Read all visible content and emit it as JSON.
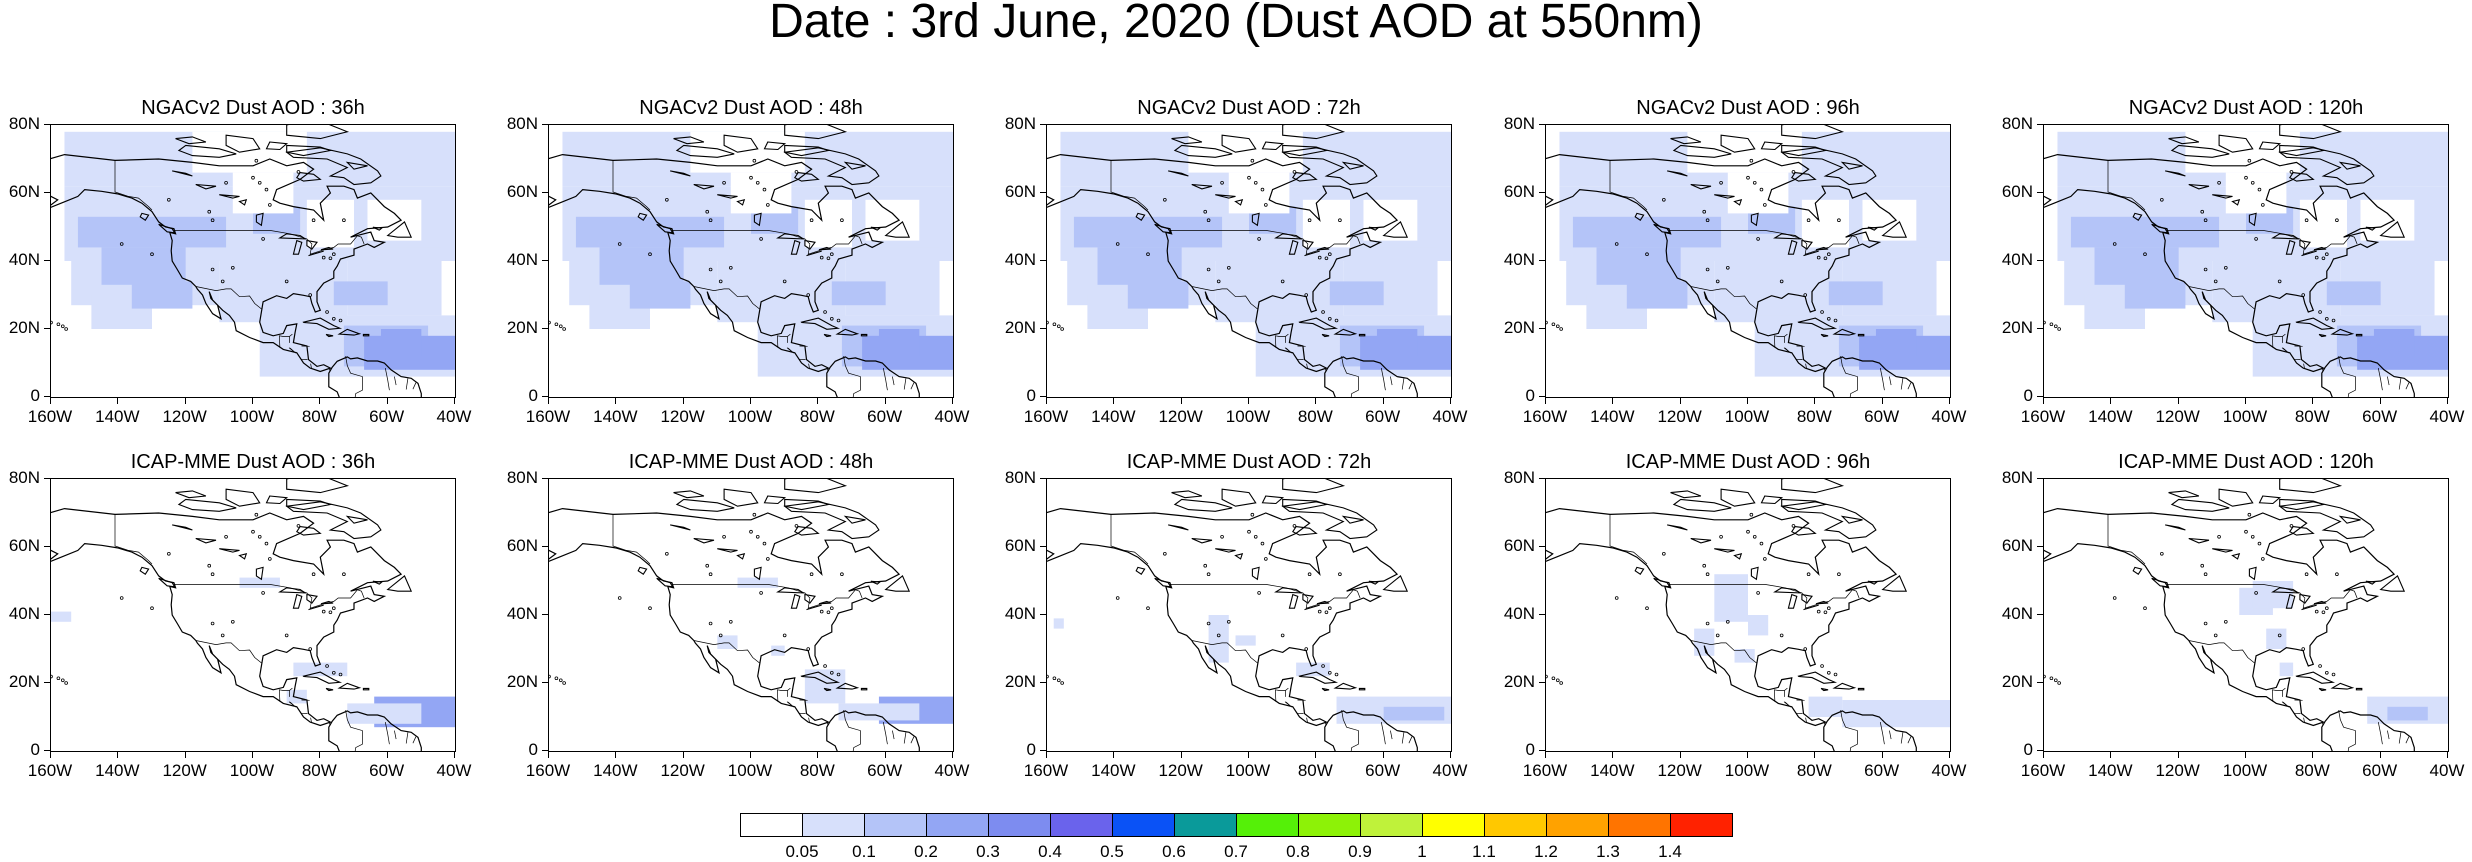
{
  "title": "Date : 3rd June, 2020 (Dust AOD at 550nm)",
  "lat_ticks": [
    "80N",
    "60N",
    "40N",
    "20N",
    "0"
  ],
  "lon_ticks": [
    "160W",
    "140W",
    "120W",
    "100W",
    "80W",
    "60W",
    "40W"
  ],
  "panels": [
    {
      "title": "NGACv2 Dust AOD : 36h",
      "model": "NGACv2",
      "lead": "36h"
    },
    {
      "title": "NGACv2 Dust AOD : 48h",
      "model": "NGACv2",
      "lead": "48h"
    },
    {
      "title": "NGACv2 Dust AOD : 72h",
      "model": "NGACv2",
      "lead": "72h"
    },
    {
      "title": "NGACv2 Dust AOD : 96h",
      "model": "NGACv2",
      "lead": "96h"
    },
    {
      "title": "NGACv2 Dust AOD : 120h",
      "model": "NGACv2",
      "lead": "120h"
    },
    {
      "title": "ICAP-MME Dust AOD : 36h",
      "model": "ICAP-MME",
      "lead": "36h"
    },
    {
      "title": "ICAP-MME Dust AOD : 48h",
      "model": "ICAP-MME",
      "lead": "48h"
    },
    {
      "title": "ICAP-MME Dust AOD : 72h",
      "model": "ICAP-MME",
      "lead": "72h"
    },
    {
      "title": "ICAP-MME Dust AOD : 96h",
      "model": "ICAP-MME",
      "lead": "96h"
    },
    {
      "title": "ICAP-MME Dust AOD : 120h",
      "model": "ICAP-MME",
      "lead": "120h"
    }
  ],
  "colorbar": {
    "labels": [
      "0.05",
      "0.1",
      "0.2",
      "0.3",
      "0.4",
      "0.5",
      "0.6",
      "0.7",
      "0.8",
      "0.9",
      "1",
      "1.1",
      "1.2",
      "1.3",
      "1.4"
    ],
    "colors": [
      "#ffffff",
      "#d7e0fb",
      "#b4c4f8",
      "#93a6f4",
      "#7d8cf0",
      "#6a63ec",
      "#0a52f6",
      "#0a9a9a",
      "#55f008",
      "#8df207",
      "#bff23a",
      "#ffff00",
      "#ffc800",
      "#ffa200",
      "#ff7400",
      "#ff2200"
    ]
  },
  "colors": {
    "dust_low": "#d7e0fb",
    "dust_mid": "#b4c4f8",
    "dust_high": "#93a6f4",
    "coastline": "#000000"
  }
}
